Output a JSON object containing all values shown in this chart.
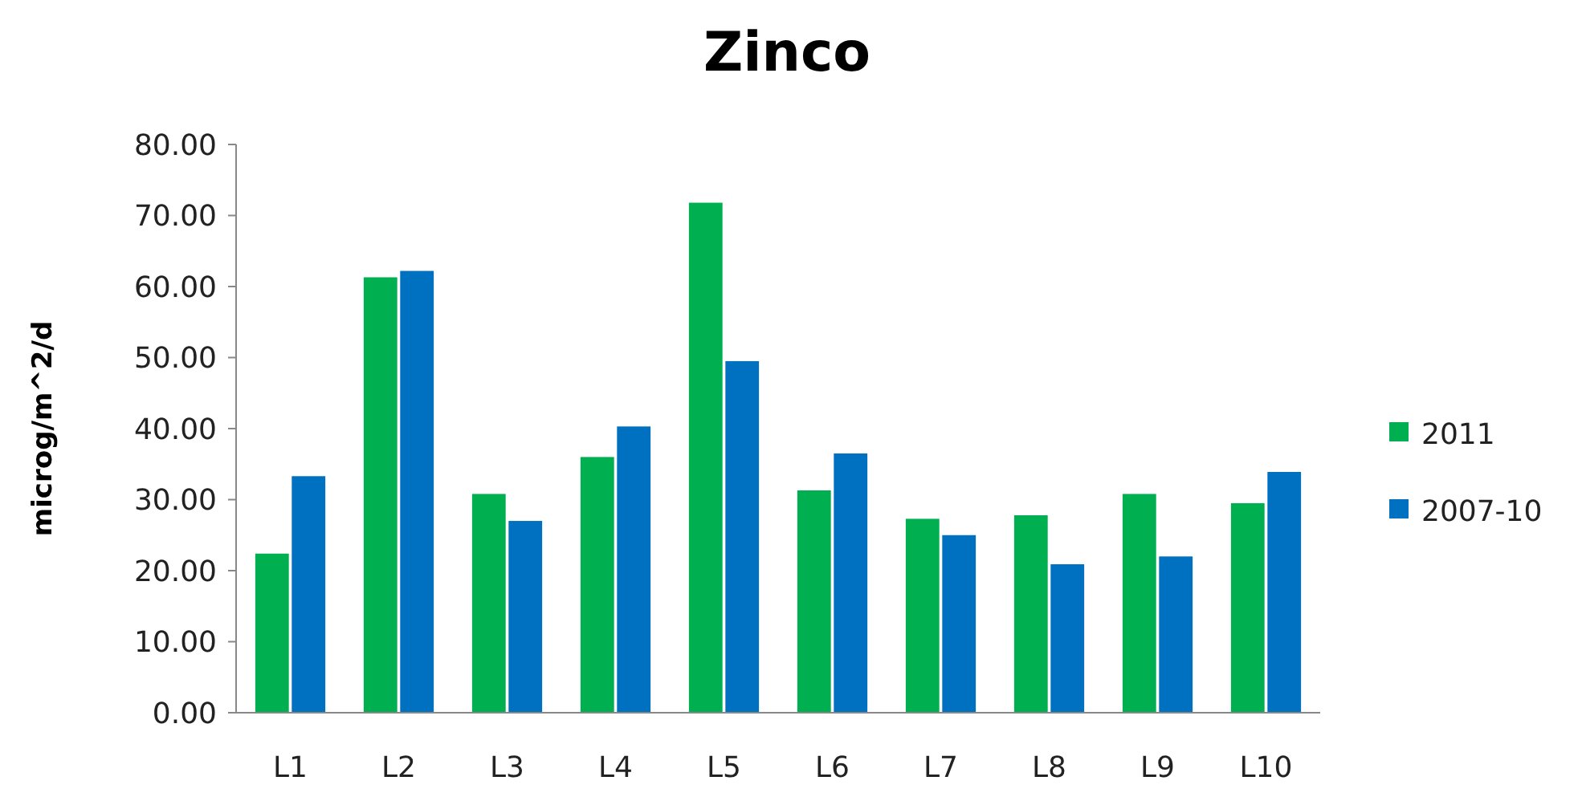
{
  "chart_data": {
    "type": "bar",
    "title": "Zinco",
    "ylabel": "microg/m^2/d",
    "categories": [
      "L1",
      "L2",
      "L3",
      "L4",
      "L5",
      "L6",
      "L7",
      "L8",
      "L9",
      "L10"
    ],
    "series": [
      {
        "name": "2011",
        "color": "#00b050",
        "values": [
          22.4,
          61.3,
          30.8,
          36.0,
          71.8,
          31.3,
          27.3,
          27.8,
          30.8,
          29.5
        ]
      },
      {
        "name": "2007-10",
        "color": "#0070c0",
        "values": [
          33.3,
          62.2,
          27.0,
          40.3,
          49.5,
          36.5,
          25.0,
          20.9,
          22.0,
          33.9
        ]
      }
    ],
    "ylim": [
      0,
      80
    ],
    "yticks": [
      {
        "value": 0,
        "label": "0.00"
      },
      {
        "value": 10,
        "label": "10.00"
      },
      {
        "value": 20,
        "label": "20.00"
      },
      {
        "value": 30,
        "label": "30.00"
      },
      {
        "value": 40,
        "label": "40.00"
      },
      {
        "value": 50,
        "label": "50.00"
      },
      {
        "value": 60,
        "label": "60.00"
      },
      {
        "value": 70,
        "label": "70.00"
      },
      {
        "value": 80,
        "label": "80.00"
      }
    ],
    "grid": false,
    "legend": "right"
  }
}
